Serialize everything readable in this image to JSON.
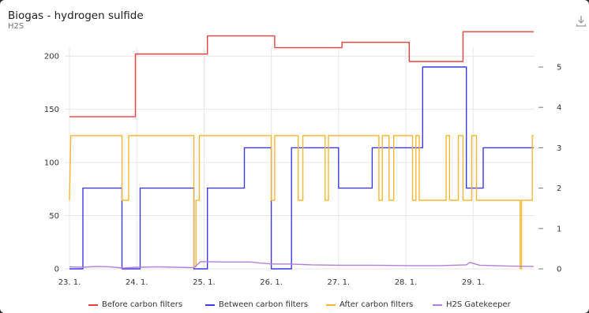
{
  "card": {
    "title": "Biogas - hydrogen sulfide",
    "subtitle": "H2S",
    "download_icon": "download-icon"
  },
  "colors": {
    "before": "#e8413d",
    "between": "#3a3ae0",
    "after": "#f7b731",
    "gatekeeper": "#b27fd9",
    "grid": "#e6e6e6",
    "tick_text": "#333333"
  },
  "chart_data": {
    "type": "line",
    "x_ticks": [
      "23. 1.",
      "24. 1.",
      "25. 1.",
      "26. 1.",
      "27. 1.",
      "28. 1.",
      "29. 1."
    ],
    "xlim": [
      0,
      7.4
    ],
    "y_left": {
      "ticks": [
        "0",
        "50",
        "100",
        "150",
        "200"
      ],
      "ylim": [
        0,
        225
      ]
    },
    "y_right": {
      "ticks": [
        "0",
        "1",
        "2",
        "3",
        "4",
        "5"
      ],
      "ylim": [
        0,
        5.4
      ]
    },
    "grid": true,
    "legend_position": "bottom",
    "series": [
      {
        "name": "Before carbon filters",
        "axis": "left",
        "step": true,
        "points": [
          [
            0,
            143
          ],
          [
            0.98,
            143
          ],
          [
            0.98,
            202
          ],
          [
            2.05,
            202
          ],
          [
            2.05,
            219
          ],
          [
            3.05,
            219
          ],
          [
            3.05,
            208
          ],
          [
            4.05,
            208
          ],
          [
            4.05,
            213
          ],
          [
            5.05,
            213
          ],
          [
            5.05,
            195
          ],
          [
            5.85,
            195
          ],
          [
            5.85,
            223
          ],
          [
            6.9,
            223
          ]
        ]
      },
      {
        "name": "Between carbon filters",
        "axis": "right",
        "step": true,
        "points": [
          [
            0,
            0
          ],
          [
            0.2,
            0
          ],
          [
            0.2,
            2
          ],
          [
            0.78,
            2
          ],
          [
            0.78,
            0
          ],
          [
            1.05,
            0
          ],
          [
            1.05,
            2
          ],
          [
            1.85,
            2
          ],
          [
            1.85,
            0
          ],
          [
            2.05,
            0
          ],
          [
            2.05,
            2
          ],
          [
            2.6,
            2
          ],
          [
            2.6,
            3
          ],
          [
            3.0,
            3
          ],
          [
            3.0,
            0
          ],
          [
            3.3,
            0
          ],
          [
            3.3,
            3
          ],
          [
            4.0,
            3
          ],
          [
            4.0,
            2
          ],
          [
            4.5,
            2
          ],
          [
            4.5,
            3
          ],
          [
            5.25,
            3
          ],
          [
            5.25,
            5
          ],
          [
            5.9,
            5
          ],
          [
            5.9,
            2
          ],
          [
            6.15,
            2
          ],
          [
            6.15,
            3
          ],
          [
            6.9,
            3
          ]
        ]
      },
      {
        "name": "After carbon filters",
        "axis": "right",
        "step": true,
        "points": [
          [
            0,
            1.7
          ],
          [
            0.02,
            3.3
          ],
          [
            0.78,
            3.3
          ],
          [
            0.78,
            1.7
          ],
          [
            0.88,
            1.7
          ],
          [
            0.88,
            3.3
          ],
          [
            1.85,
            3.3
          ],
          [
            1.85,
            0.05
          ],
          [
            1.88,
            0.05
          ],
          [
            1.88,
            1.7
          ],
          [
            1.93,
            1.7
          ],
          [
            1.93,
            3.3
          ],
          [
            3.0,
            3.3
          ],
          [
            3.0,
            1.7
          ],
          [
            3.05,
            1.7
          ],
          [
            3.05,
            3.3
          ],
          [
            3.4,
            3.3
          ],
          [
            3.4,
            1.7
          ],
          [
            3.47,
            1.7
          ],
          [
            3.47,
            3.3
          ],
          [
            3.8,
            3.3
          ],
          [
            3.8,
            1.7
          ],
          [
            3.85,
            1.7
          ],
          [
            3.85,
            3.3
          ],
          [
            4.6,
            3.3
          ],
          [
            4.6,
            1.7
          ],
          [
            4.65,
            1.7
          ],
          [
            4.65,
            3.3
          ],
          [
            4.75,
            3.3
          ],
          [
            4.75,
            1.7
          ],
          [
            4.82,
            1.7
          ],
          [
            4.82,
            3.3
          ],
          [
            5.1,
            3.3
          ],
          [
            5.1,
            1.7
          ],
          [
            5.15,
            1.7
          ],
          [
            5.15,
            3.3
          ],
          [
            5.2,
            3.3
          ],
          [
            5.2,
            1.7
          ],
          [
            5.6,
            1.7
          ],
          [
            5.6,
            3.3
          ],
          [
            5.65,
            3.3
          ],
          [
            5.65,
            1.7
          ],
          [
            5.78,
            1.7
          ],
          [
            5.78,
            3.3
          ],
          [
            5.85,
            3.3
          ],
          [
            5.85,
            1.7
          ],
          [
            5.98,
            1.7
          ],
          [
            5.98,
            3.3
          ],
          [
            6.05,
            3.3
          ],
          [
            6.05,
            1.7
          ],
          [
            6.7,
            1.7
          ],
          [
            6.7,
            0.0
          ],
          [
            6.72,
            0.0
          ],
          [
            6.72,
            1.7
          ],
          [
            6.88,
            1.7
          ],
          [
            6.88,
            3.3
          ],
          [
            6.9,
            3.3
          ]
        ]
      },
      {
        "name": "H2S Gatekeeper",
        "axis": "right",
        "step": false,
        "points": [
          [
            0,
            0.05
          ],
          [
            0.2,
            0.04
          ],
          [
            0.4,
            0.06
          ],
          [
            0.6,
            0.05
          ],
          [
            0.8,
            0.02
          ],
          [
            1.0,
            0.04
          ],
          [
            1.3,
            0.05
          ],
          [
            1.6,
            0.04
          ],
          [
            1.85,
            0.03
          ],
          [
            1.95,
            0.18
          ],
          [
            2.3,
            0.17
          ],
          [
            2.7,
            0.17
          ],
          [
            2.85,
            0.14
          ],
          [
            3.05,
            0.12
          ],
          [
            3.3,
            0.12
          ],
          [
            3.6,
            0.1
          ],
          [
            4.0,
            0.09
          ],
          [
            4.5,
            0.09
          ],
          [
            5.0,
            0.08
          ],
          [
            5.5,
            0.08
          ],
          [
            5.9,
            0.1
          ],
          [
            5.95,
            0.16
          ],
          [
            6.1,
            0.09
          ],
          [
            6.5,
            0.07
          ],
          [
            6.9,
            0.06
          ]
        ]
      }
    ]
  },
  "legend": [
    "Before carbon filters",
    "Between carbon filters",
    "After carbon filters",
    "H2S Gatekeeper"
  ]
}
